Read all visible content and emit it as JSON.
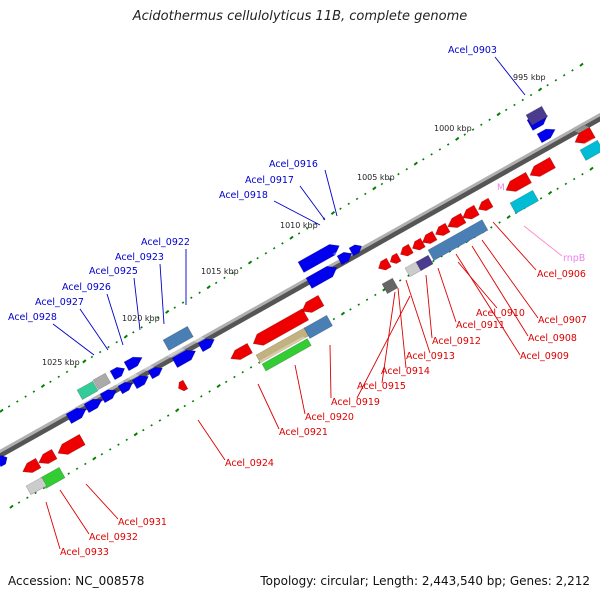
{
  "title": "Acidothermus cellulolyticus 11B, complete genome",
  "footer": {
    "accession": "Accession: NC_008578",
    "topology": "Topology: circular; Length: 2,443,540 bp; Genes: 2,212"
  },
  "colors": {
    "forward_gene": "#0000ee",
    "reverse_gene": "#ee0000",
    "rna_gene": "#ee82ee",
    "backbone": "#808080",
    "tick": "#008000"
  },
  "scale_labels": [
    "995 kbp",
    "1000 kbp",
    "1005 kbp",
    "1010 kbp",
    "1015 kbp",
    "1020 kbp",
    "1025 kbp"
  ],
  "genes_top": [
    "Acel_0903",
    "Acel_0916",
    "Acel_0917",
    "Acel_0918",
    "Acel_0922",
    "Acel_0923",
    "Acel_0925",
    "Acel_0926",
    "Acel_0927",
    "Acel_0928"
  ],
  "genes_bottom": [
    "Acel_0906",
    "Acel_0907",
    "Acel_0908",
    "Acel_0909",
    "Acel_0910",
    "Acel_0911",
    "Acel_0912",
    "Acel_0913",
    "Acel_0914",
    "Acel_0915",
    "Acel_0919",
    "Acel_0920",
    "Acel_0921",
    "Acel_0924",
    "Acel_0931",
    "Acel_0932",
    "Acel_0933"
  ],
  "rna_label": "rnpB"
}
